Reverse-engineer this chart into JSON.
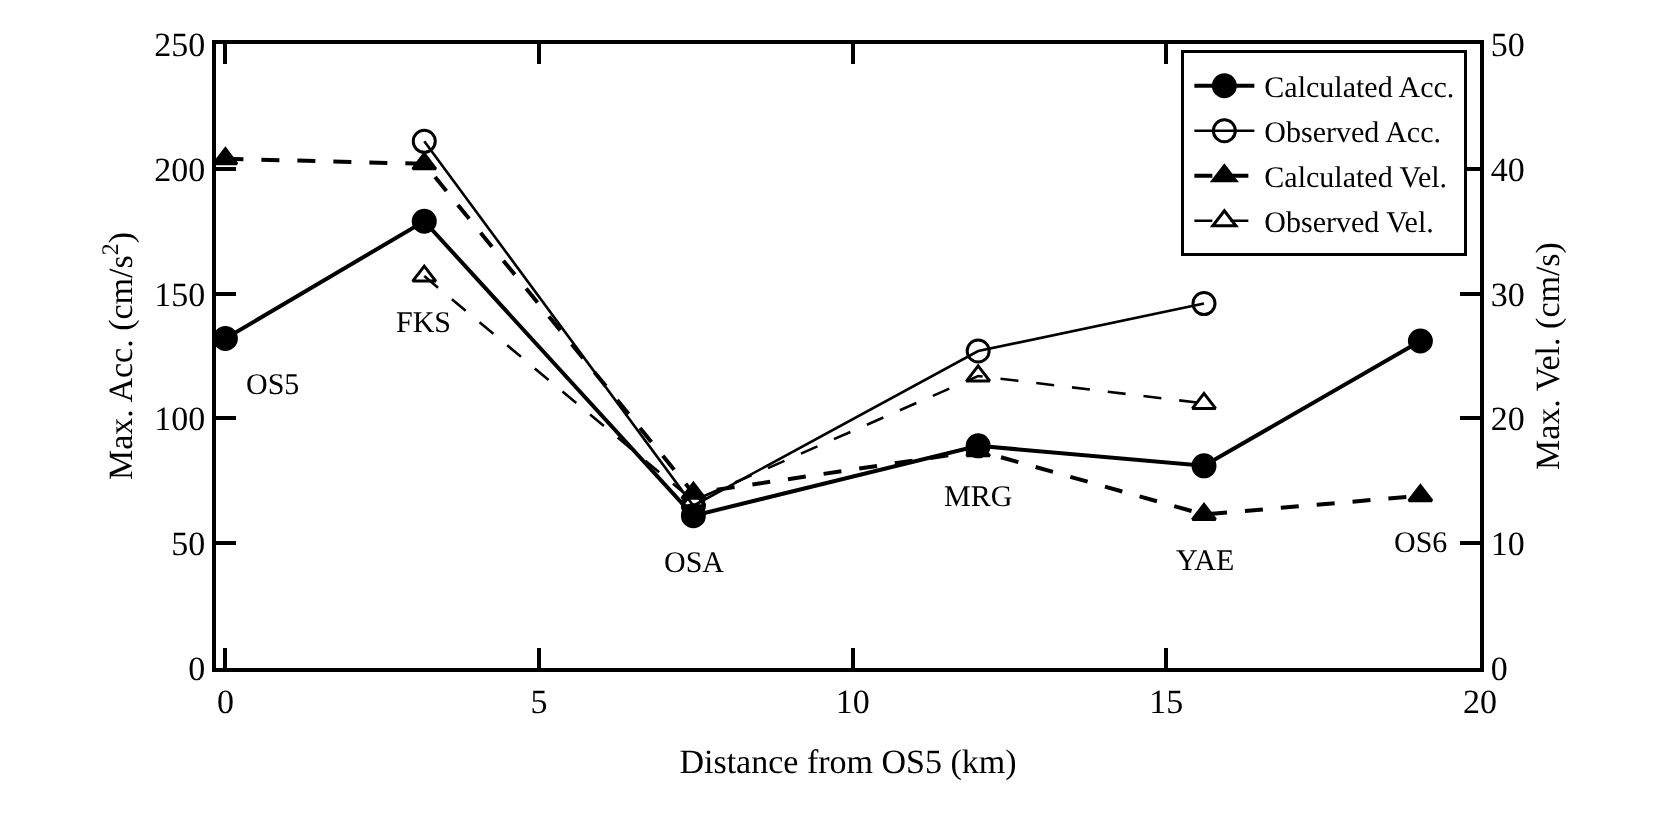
{
  "chart_data": {
    "type": "line",
    "xlabel": "Distance from OS5 (km)",
    "ylabel": "Max. Acc. (cm/s$^{2}$)",
    "y2label": "Max. Vel. (cm/s)",
    "xlim": [
      -0.15,
      20
    ],
    "xticks": [
      0,
      5,
      10,
      15,
      20
    ],
    "ylim": [
      0,
      250
    ],
    "yticks": [
      0,
      50,
      100,
      150,
      200,
      250
    ],
    "y2lim": [
      0,
      50
    ],
    "y2ticks": [
      0,
      10,
      20,
      30,
      40,
      50
    ],
    "legend": "top right",
    "series": [
      {
        "name": "Calculated Acc.",
        "color": "#000000",
        "marker": "circle",
        "line_style": "solid",
        "x": [
          0,
          3.17,
          7.46,
          12.0,
          15.6,
          19.05
        ],
        "values": [
          132,
          179,
          61,
          89,
          81,
          131
        ]
      },
      {
        "name": "Observed Acc.",
        "color": "#000000",
        "marker": "circle",
        "line_style": "solid",
        "x": [
          3.17,
          7.46,
          12.0,
          15.6
        ],
        "values": [
          211,
          65,
          127,
          146
        ]
      },
      {
        "name": "Calculated Vel.",
        "color": "#000000",
        "marker": "triangle",
        "line_style": "dashed",
        "axis": "y2",
        "x": [
          0,
          3.17,
          7.46,
          12.0,
          15.6,
          19.05
        ],
        "values": [
          40.8,
          40.4,
          14.0,
          17.4,
          12.3,
          13.8
        ]
      },
      {
        "name": "Observed Vel.",
        "color": "#000000",
        "marker": "triangle",
        "line_style": "dashed",
        "axis": "y2",
        "x": [
          3.17,
          7.46,
          12.0,
          15.6
        ],
        "values": [
          31.4,
          13.4,
          23.4,
          21.2
        ]
      }
    ],
    "annotations": [
      "OS5",
      "FKS",
      "OSA",
      "MRG",
      "YAE",
      "OS6"
    ]
  }
}
